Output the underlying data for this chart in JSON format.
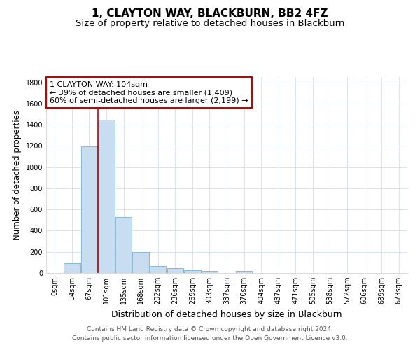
{
  "title": "1, CLAYTON WAY, BLACKBURN, BB2 4FZ",
  "subtitle": "Size of property relative to detached houses in Blackburn",
  "xlabel": "Distribution of detached houses by size in Blackburn",
  "ylabel": "Number of detached properties",
  "bar_color": "#c8ddf0",
  "bar_edgecolor": "#7aafd4",
  "background_color": "#ffffff",
  "fig_background_color": "#ffffff",
  "grid_color": "#d8e4f0",
  "categories": [
    "0sqm",
    "34sqm",
    "67sqm",
    "101sqm",
    "135sqm",
    "168sqm",
    "202sqm",
    "236sqm",
    "269sqm",
    "303sqm",
    "337sqm",
    "370sqm",
    "404sqm",
    "437sqm",
    "471sqm",
    "505sqm",
    "538sqm",
    "572sqm",
    "606sqm",
    "639sqm",
    "673sqm"
  ],
  "values": [
    0,
    90,
    1195,
    1450,
    530,
    200,
    68,
    48,
    25,
    22,
    0,
    20,
    0,
    0,
    0,
    0,
    0,
    0,
    0,
    0,
    0
  ],
  "property_line_color": "#cc0000",
  "annotation_text": "1 CLAYTON WAY: 104sqm\n← 39% of detached houses are smaller (1,409)\n60% of semi-detached houses are larger (2,199) →",
  "annotation_box_facecolor": "#ffffff",
  "annotation_box_edgecolor": "#cc0000",
  "annotation_text_color": "#000000",
  "ylim": [
    0,
    1850
  ],
  "yticks": [
    0,
    200,
    400,
    600,
    800,
    1000,
    1200,
    1400,
    1600,
    1800
  ],
  "footer_line1": "Contains HM Land Registry data © Crown copyright and database right 2024.",
  "footer_line2": "Contains public sector information licensed under the Open Government Licence v3.0.",
  "title_fontsize": 11,
  "subtitle_fontsize": 9.5,
  "xlabel_fontsize": 9,
  "ylabel_fontsize": 8.5,
  "tick_fontsize": 7,
  "annotation_fontsize": 8,
  "footer_fontsize": 6.5
}
